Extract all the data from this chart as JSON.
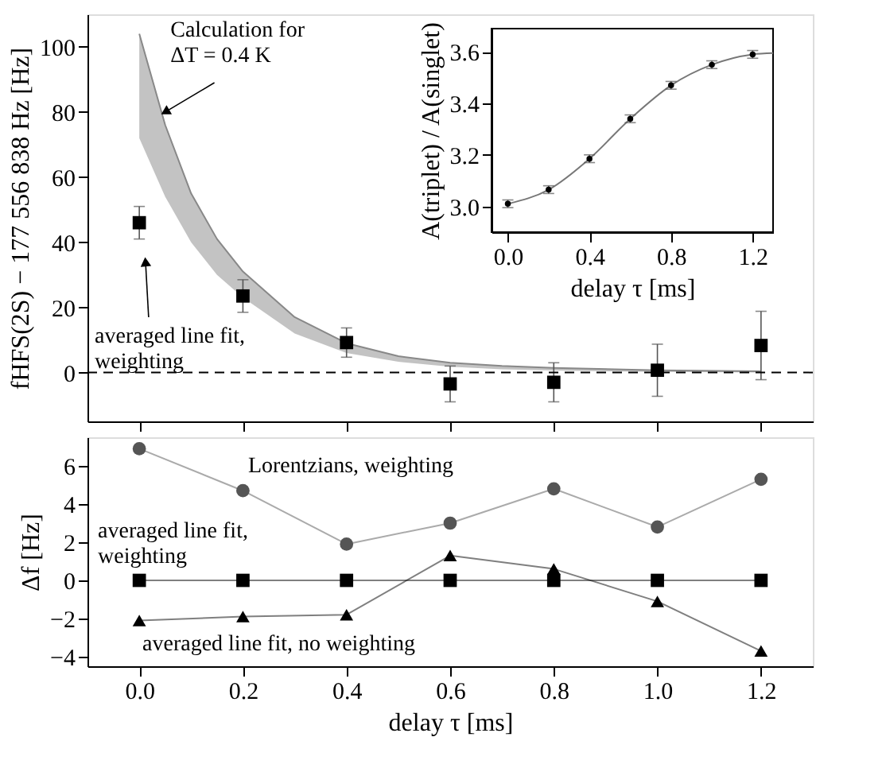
{
  "chart_data": [
    {
      "type": "scatter",
      "ylabel": "fHFS(2S) − 177 556 838 Hz [Hz]",
      "xlim": [
        -0.1,
        1.3
      ],
      "xticks": [
        {
          "value": 0,
          "label": null
        },
        {
          "value": 0.2,
          "label": null
        },
        {
          "value": 0.4,
          "label": null
        },
        {
          "value": 0.6,
          "label": null
        },
        {
          "value": 0.8,
          "label": null
        },
        {
          "value": 1,
          "label": null
        },
        {
          "value": 1.2,
          "label": null
        }
      ],
      "ylim": [
        -15,
        110
      ],
      "yticks": [
        0,
        20,
        40,
        60,
        80,
        100
      ],
      "tick_labels": "y",
      "grid": false,
      "series": [
        {
          "type": "line",
          "marker": "none",
          "color": "#888888",
          "x": [
            0,
            0.05,
            0.1,
            0.15,
            0.2,
            0.3,
            0.4,
            0.5,
            0.6,
            0.7,
            0.8,
            1.0,
            1.2
          ],
          "values": [
            104,
            76,
            55,
            41,
            31,
            17,
            9,
            5,
            3,
            2,
            1.4,
            0.7,
            0.4
          ],
          "lower": [
            72,
            54,
            40,
            30,
            23,
            12,
            6,
            3.3,
            1.8,
            1,
            0.6,
            0.2,
            0
          ],
          "upper": [
            104,
            76,
            55,
            41,
            31,
            17,
            9,
            5,
            3,
            2,
            1.4,
            0.7,
            0.4
          ]
        },
        {
          "type": "scatter",
          "marker": "square",
          "color": "#000000",
          "x": [
            0,
            0.2,
            0.4,
            0.6,
            0.8,
            1.0,
            1.2
          ],
          "values": [
            46,
            23.5,
            9.2,
            -3.5,
            -3,
            0.7,
            8.3
          ],
          "errors": [
            5,
            5,
            4.5,
            5.5,
            6,
            8,
            10.5
          ]
        }
      ],
      "ref_lines": [
        {
          "axis": "y",
          "value": 0,
          "line_style": "dashed",
          "color": "#000000"
        }
      ],
      "annotations": [
        {
          "text": "Calculation for\nΔT = 0.4 K",
          "x": 0.05,
          "y": 80
        },
        {
          "text": "averaged line fit,\nweighting",
          "x": 0.012,
          "y": 34
        }
      ]
    },
    {
      "type": "scatter",
      "xlabel": "delay τ [ms]",
      "ylabel": "A(triplet) / A(singlet)",
      "xlim": [
        -0.08,
        1.3
      ],
      "xticks": [
        {
          "value": 0,
          "label": "0.0"
        },
        0.4,
        0.8,
        1.2
      ],
      "ylim": [
        2.9,
        3.69
      ],
      "yticks": [
        {
          "value": 3,
          "label": "3.0"
        },
        3.2,
        3.4,
        3.6
      ],
      "grid": false,
      "series": [
        {
          "type": "line",
          "marker": "none",
          "color": "#777777",
          "x": [
            0,
            0.2,
            0.4,
            0.6,
            0.8,
            1.0,
            1.2,
            1.3
          ],
          "values": [
            3.01,
            3.065,
            3.185,
            3.34,
            3.47,
            3.55,
            3.59,
            3.595
          ]
        },
        {
          "type": "scatter",
          "marker": "circle",
          "color": "#000000",
          "x": [
            0,
            0.2,
            0.4,
            0.6,
            0.8,
            1.0,
            1.2
          ],
          "values": [
            3.01,
            3.065,
            3.185,
            3.34,
            3.47,
            3.55,
            3.59
          ],
          "errors": [
            0.015,
            0.015,
            0.015,
            0.015,
            0.015,
            0.015,
            0.015
          ]
        }
      ]
    },
    {
      "type": "line",
      "xlabel": "delay τ [ms]",
      "ylabel": "Δf [Hz]",
      "xlim": [
        -0.1,
        1.3
      ],
      "xticks": [
        {
          "value": 0,
          "label": "0.0"
        },
        0.2,
        0.4,
        0.6,
        0.8,
        {
          "value": 1,
          "label": "1.0"
        },
        1.2
      ],
      "ylim": [
        -4.5,
        7.5
      ],
      "yticks": [
        -4,
        -2,
        0,
        2,
        4,
        6
      ],
      "grid": false,
      "x": [
        0,
        0.2,
        0.4,
        0.6,
        0.8,
        1.0,
        1.2
      ],
      "series": [
        {
          "name": "Lorentzians, weighting",
          "marker": "circle",
          "color": "#555555",
          "values": [
            6.9,
            4.7,
            1.9,
            3.0,
            4.8,
            2.8,
            5.3
          ]
        },
        {
          "name": "averaged line fit,\nweighting",
          "marker": "square",
          "color": "#000000",
          "values": [
            0,
            0,
            0,
            0,
            0,
            0,
            0
          ]
        },
        {
          "name": "averaged line fit, no weighting",
          "marker": "triangle",
          "color": "#000000",
          "values": [
            -2.1,
            -1.9,
            -1.8,
            1.3,
            0.6,
            -1.1,
            -3.7
          ]
        }
      ]
    }
  ]
}
